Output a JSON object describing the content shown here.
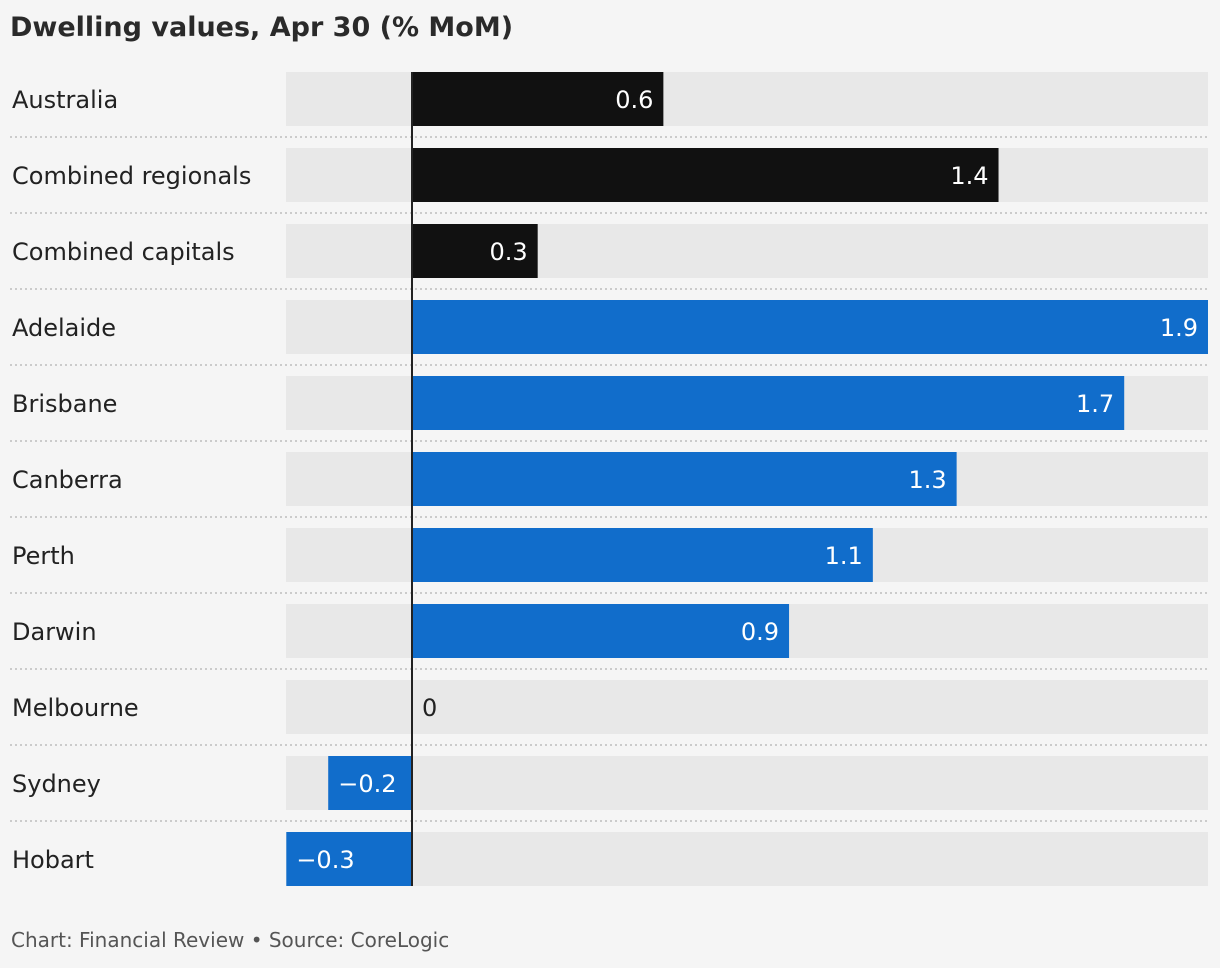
{
  "chart_data": {
    "type": "bar",
    "orientation": "horizontal",
    "title": "Dwelling values, Apr 30 (% MoM)",
    "categories": [
      "Australia",
      "Combined regionals",
      "Combined capitals",
      "Adelaide",
      "Brisbane",
      "Canberra",
      "Perth",
      "Darwin",
      "Melbourne",
      "Sydney",
      "Hobart"
    ],
    "values": [
      0.6,
      1.4,
      0.3,
      1.9,
      1.7,
      1.3,
      1.1,
      0.9,
      0,
      -0.2,
      -0.3
    ],
    "value_labels": [
      "0.6",
      "1.4",
      "0.3",
      "1.9",
      "1.7",
      "1.3",
      "1.1",
      "0.9",
      "0",
      "−0.2",
      "−0.3"
    ],
    "groups": [
      "aggregate",
      "aggregate",
      "aggregate",
      "city",
      "city",
      "city",
      "city",
      "city",
      "city",
      "city",
      "city"
    ],
    "xlim": [
      -0.3,
      1.9
    ],
    "grid": false,
    "colors": {
      "aggregate": "#111111",
      "city": "#116dcb",
      "track": "#e8e8e8",
      "zero_line": "#222222",
      "separator": "#bdbdbd"
    }
  },
  "footer": "Chart: Financial Review • Source: CoreLogic"
}
